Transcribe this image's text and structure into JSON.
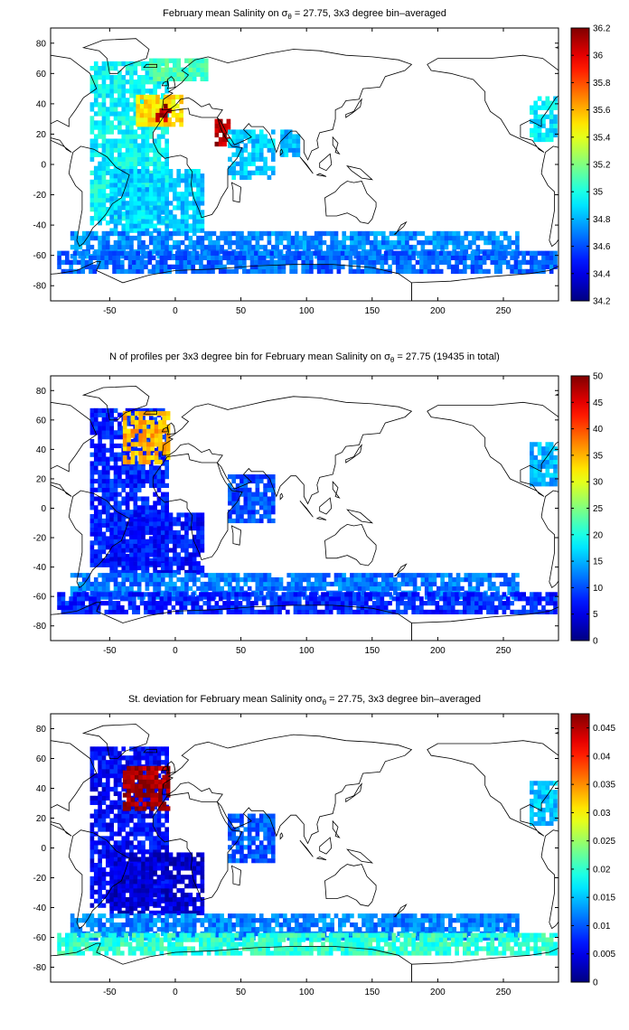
{
  "chart_data": [
    {
      "type": "heatmap",
      "title_prefix": "February mean Salinity on ",
      "title_sigma": "σ",
      "title_sub": "θ",
      "title_suffix": " = 27.75, 3x3 degree bin–averaged",
      "xlim": [
        -95,
        292
      ],
      "ylim": [
        -90,
        90
      ],
      "xticks": [
        -50,
        0,
        50,
        100,
        150,
        200,
        250
      ],
      "yticks": [
        80,
        60,
        40,
        20,
        0,
        -20,
        -40,
        -60,
        -80
      ],
      "colorbar": {
        "min": 34.2,
        "max": 36.2,
        "ticks": [
          36.2,
          36,
          35.8,
          35.6,
          35.4,
          35.2,
          35,
          34.8,
          34.6,
          34.4,
          34.2
        ],
        "tick_labels": [
          "36.2",
          "36",
          "35.8",
          "35.6",
          "35.4",
          "35.2",
          "35",
          "34.8",
          "34.6",
          "34.4",
          "34.2"
        ]
      },
      "regions": [
        {
          "lon": [
            -65,
            -5
          ],
          "lat": [
            -40,
            68
          ],
          "value": 34.95
        },
        {
          "lon": [
            -50,
            20
          ],
          "lat": [
            -45,
            -5
          ],
          "value": 34.85
        },
        {
          "lon": [
            -30,
            5
          ],
          "lat": [
            25,
            45
          ],
          "value": 35.5
        },
        {
          "lon": [
            -15,
            -5
          ],
          "lat": [
            28,
            40
          ],
          "value": 36.1
        },
        {
          "lon": [
            -20,
            25
          ],
          "lat": [
            55,
            70
          ],
          "value": 35.1
        },
        {
          "lon": [
            30,
            40
          ],
          "lat": [
            12,
            28
          ],
          "value": 36.1
        },
        {
          "lon": [
            40,
            75
          ],
          "lat": [
            -10,
            22
          ],
          "value": 34.85
        },
        {
          "lon": [
            80,
            95
          ],
          "lat": [
            5,
            22
          ],
          "value": 34.8
        },
        {
          "lon": [
            -80,
            260
          ],
          "lat": [
            -62,
            -45
          ],
          "value": 34.72
        },
        {
          "lon": [
            -90,
            290
          ],
          "lat": [
            -72,
            -58
          ],
          "value": 34.65
        },
        {
          "lon": [
            270,
            290
          ],
          "lat": [
            15,
            45
          ],
          "value": 34.9
        }
      ]
    },
    {
      "type": "heatmap",
      "title_prefix": "N of profiles per 3x3 degree bin for February mean Salinity on ",
      "title_sigma": "σ",
      "title_sub": "θ",
      "title_suffix": " = 27.75 (19435 in total)",
      "xlim": [
        -95,
        292
      ],
      "ylim": [
        -90,
        90
      ],
      "xticks": [
        -50,
        0,
        50,
        100,
        150,
        200,
        250
      ],
      "yticks": [
        80,
        60,
        40,
        20,
        0,
        -20,
        -40,
        -60,
        -80
      ],
      "colorbar": {
        "min": 0,
        "max": 50,
        "ticks": [
          50,
          45,
          40,
          35,
          30,
          25,
          20,
          15,
          10,
          5,
          0
        ],
        "tick_labels": [
          "50",
          "45",
          "40",
          "35",
          "30",
          "25",
          "20",
          "15",
          "10",
          "5",
          "0"
        ]
      },
      "regions": [
        {
          "lon": [
            -65,
            -5
          ],
          "lat": [
            -40,
            68
          ],
          "value": 8
        },
        {
          "lon": [
            -50,
            20
          ],
          "lat": [
            -45,
            -5
          ],
          "value": 7
        },
        {
          "lon": [
            -40,
            -5
          ],
          "lat": [
            30,
            65
          ],
          "value": 35
        },
        {
          "lon": [
            40,
            75
          ],
          "lat": [
            -10,
            22
          ],
          "value": 10
        },
        {
          "lon": [
            -80,
            260
          ],
          "lat": [
            -62,
            -45
          ],
          "value": 12
        },
        {
          "lon": [
            -90,
            290
          ],
          "lat": [
            -72,
            -58
          ],
          "value": 8
        },
        {
          "lon": [
            270,
            290
          ],
          "lat": [
            15,
            45
          ],
          "value": 15
        }
      ]
    },
    {
      "type": "heatmap",
      "title_prefix": "St. deviation for February mean Salinity on",
      "title_sigma": "σ",
      "title_sub": "θ",
      "title_suffix": " = 27.75, 3x3 degree bin–averaged",
      "xlim": [
        -95,
        292
      ],
      "ylim": [
        -90,
        90
      ],
      "xticks": [
        -50,
        0,
        50,
        100,
        150,
        200,
        250
      ],
      "yticks": [
        80,
        60,
        40,
        20,
        0,
        -20,
        -40,
        -60,
        -80
      ],
      "colorbar": {
        "min": 0,
        "max": 0.0475,
        "ticks": [
          0.045,
          0.04,
          0.035,
          0.03,
          0.025,
          0.02,
          0.015,
          0.01,
          0.005,
          0
        ],
        "tick_labels": [
          "0.045",
          "0.04",
          "0.035",
          "0.03",
          "0.025",
          "0.02",
          "0.015",
          "0.01",
          "0.005",
          "0"
        ]
      },
      "regions": [
        {
          "lon": [
            -65,
            -5
          ],
          "lat": [
            -40,
            68
          ],
          "value": 0.006
        },
        {
          "lon": [
            -50,
            20
          ],
          "lat": [
            -45,
            -5
          ],
          "value": 0.004
        },
        {
          "lon": [
            -40,
            -5
          ],
          "lat": [
            25,
            55
          ],
          "value": 0.046
        },
        {
          "lon": [
            40,
            75
          ],
          "lat": [
            -10,
            22
          ],
          "value": 0.01
        },
        {
          "lon": [
            -80,
            260
          ],
          "lat": [
            -62,
            -45
          ],
          "value": 0.012
        },
        {
          "lon": [
            -90,
            290
          ],
          "lat": [
            -72,
            -58
          ],
          "value": 0.02
        },
        {
          "lon": [
            270,
            290
          ],
          "lat": [
            15,
            45
          ],
          "value": 0.015
        }
      ]
    }
  ]
}
